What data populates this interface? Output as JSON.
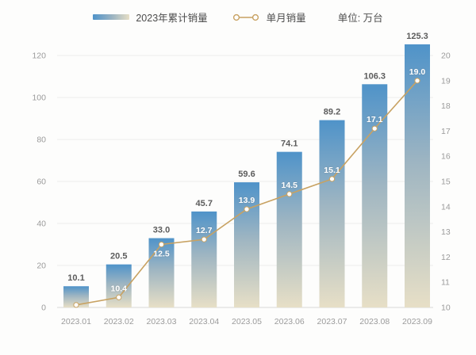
{
  "legend": {
    "bar_label": "2023年累计销量",
    "line_label": "单月销量",
    "unit_label": "单位: 万台"
  },
  "colors": {
    "bar_top": "#4f93c9",
    "bar_mid": "#9eb5c2",
    "bar_bottom": "#e7dfc6",
    "line": "#c8a262",
    "grid": "#ededed",
    "baseline": "#d9d9d9",
    "axis_text": "#9b9b9b",
    "bar_value_text": "#5c5c5c",
    "line_value_text": "#ffffff",
    "background": "#fdfdfc"
  },
  "chart_data": {
    "type": "combo",
    "title": "",
    "unit": "万台",
    "grid": true,
    "legend_position": "top",
    "categories": [
      "2023.01",
      "2023.02",
      "2023.03",
      "2023.04",
      "2023.05",
      "2023.06",
      "2023.07",
      "2023.08",
      "2023.09"
    ],
    "series": [
      {
        "name": "2023年累计销量",
        "type": "bar",
        "axis": "left",
        "values": [
          10.1,
          20.5,
          33.0,
          45.7,
          59.6,
          74.1,
          89.2,
          106.3,
          125.3
        ],
        "data_labels": [
          "10.1",
          "20.5",
          "33.0",
          "45.7",
          "59.6",
          "74.1",
          "89.2",
          "106.3",
          "125.3"
        ]
      },
      {
        "name": "单月销量",
        "type": "line",
        "axis": "right",
        "values": [
          10.1,
          10.4,
          12.5,
          12.7,
          13.9,
          14.5,
          15.1,
          17.1,
          19.0
        ],
        "data_labels": [
          "",
          "10.4",
          "12.5",
          "12.7",
          "13.9",
          "14.5",
          "15.1",
          "17.1",
          "19.0"
        ],
        "label_positions": [
          "none",
          "above",
          "below",
          "above",
          "above",
          "above",
          "above",
          "above",
          "above"
        ]
      }
    ],
    "left_axis": {
      "min": 0,
      "max": 120,
      "step": 20,
      "ticks": [
        0,
        20,
        40,
        60,
        80,
        100,
        120
      ]
    },
    "right_axis": {
      "min": 10,
      "max": 20,
      "step": 1,
      "ticks": [
        10,
        11,
        12,
        13,
        14,
        15,
        16,
        17,
        18,
        19,
        20
      ]
    }
  }
}
